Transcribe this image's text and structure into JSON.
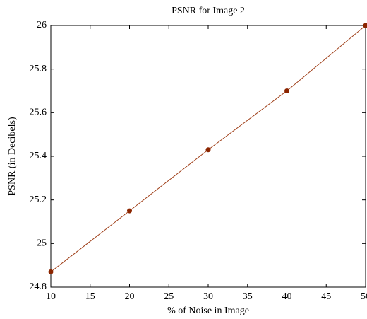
{
  "chart_data": {
    "type": "line",
    "title": "PSNR for Image 2",
    "xlabel": "% of Noise in Image",
    "ylabel": "PSNR  (in Decibels)",
    "x": [
      10,
      20,
      30,
      40,
      50
    ],
    "series": [
      {
        "name": "PSNR",
        "color": "#a0401a",
        "marker_color": "#8b2500",
        "values": [
          24.87,
          25.15,
          25.43,
          25.7,
          26.0
        ]
      }
    ],
    "xlim": [
      10,
      50
    ],
    "xticks": [
      10,
      15,
      20,
      25,
      30,
      35,
      40,
      45,
      50
    ],
    "ylim": [
      24.8,
      26
    ],
    "yticks": [
      24.8,
      25,
      25.2,
      25.4,
      25.6,
      25.8,
      26
    ],
    "grid": false
  }
}
